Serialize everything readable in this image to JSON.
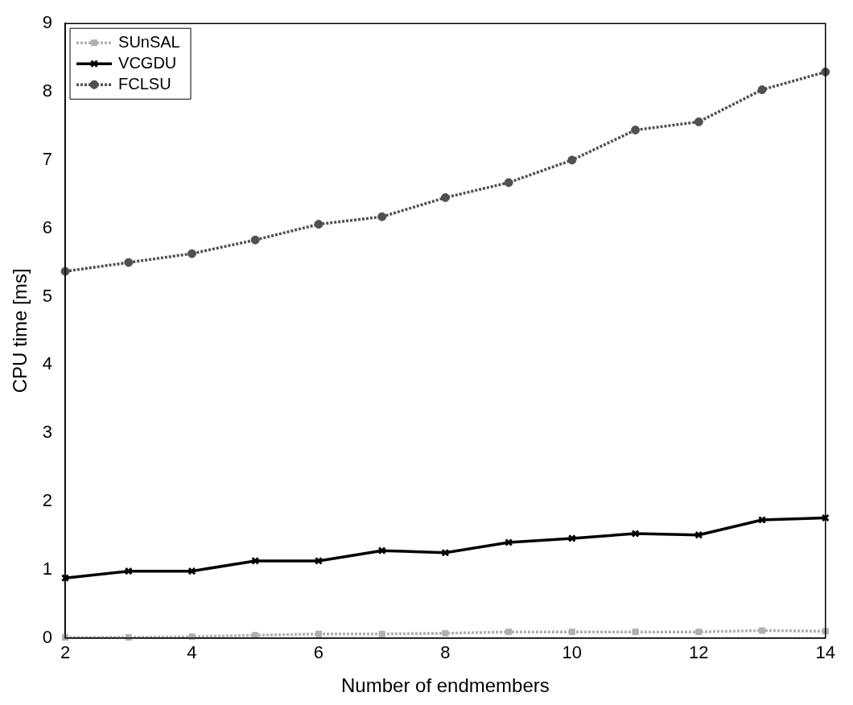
{
  "chart_data": {
    "type": "line",
    "xlabel": "Number of endmembers",
    "ylabel": "CPU time [ms]",
    "x": [
      2,
      3,
      4,
      5,
      6,
      7,
      8,
      9,
      10,
      11,
      12,
      13,
      14
    ],
    "xlim": [
      2,
      14
    ],
    "xticks": [
      2,
      4,
      6,
      8,
      10,
      12,
      14
    ],
    "ylim": [
      0,
      9
    ],
    "yticks": [
      0,
      1,
      2,
      3,
      4,
      5,
      6,
      7,
      8,
      9
    ],
    "grid": false,
    "legend": "top left",
    "series": [
      {
        "name": "SUnSAL",
        "color": "#b0b0b0",
        "marker": "square",
        "line_style": "dotted",
        "values": [
          0.01,
          0.01,
          0.02,
          0.04,
          0.06,
          0.06,
          0.07,
          0.09,
          0.09,
          0.09,
          0.09,
          0.11,
          0.1
        ]
      },
      {
        "name": "VCGDU",
        "color": "#000000",
        "marker": "cross",
        "line_style": "solid",
        "values": [
          0.88,
          0.98,
          0.98,
          1.13,
          1.13,
          1.28,
          1.25,
          1.4,
          1.46,
          1.53,
          1.51,
          1.73,
          1.76
        ]
      },
      {
        "name": "FCLSU",
        "color": "#505050",
        "marker": "circle",
        "line_style": "dotted",
        "values": [
          5.37,
          5.5,
          5.63,
          5.83,
          6.06,
          6.17,
          6.45,
          6.67,
          7.0,
          7.44,
          7.56,
          8.03,
          8.29
        ]
      }
    ]
  }
}
